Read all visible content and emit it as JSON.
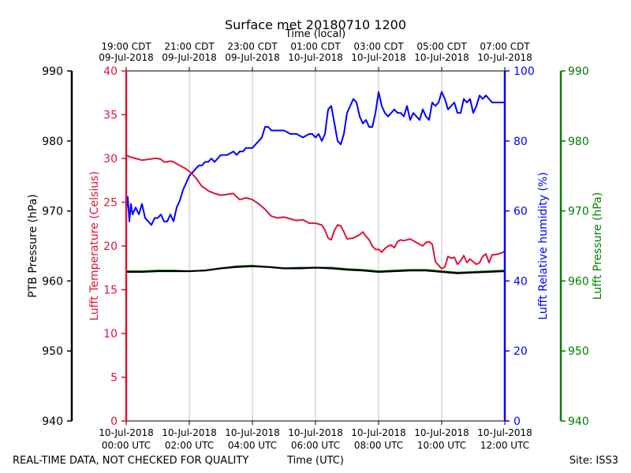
{
  "chart_data": {
    "type": "line",
    "title": "Surface met 20180710 1200",
    "top_axis_label": "Time (local)",
    "xlabel": "Time (UTC)",
    "footer_left": "REAL-TIME DATA, NOT CHECKED FOR QUALITY",
    "footer_right": "Site: ISS3",
    "x_unit": "hours after 10-Jul-2018 00:00 UTC",
    "xlim": [
      0,
      12
    ],
    "x_ticks_utc": [
      {
        "x": 0,
        "line1": "10-Jul-2018",
        "line2": "00:00 UTC"
      },
      {
        "x": 2,
        "line1": "10-Jul-2018",
        "line2": "02:00 UTC"
      },
      {
        "x": 4,
        "line1": "10-Jul-2018",
        "line2": "04:00 UTC"
      },
      {
        "x": 6,
        "line1": "10-Jul-2018",
        "line2": "06:00 UTC"
      },
      {
        "x": 8,
        "line1": "10-Jul-2018",
        "line2": "08:00 UTC"
      },
      {
        "x": 10,
        "line1": "10-Jul-2018",
        "line2": "10:00 UTC"
      },
      {
        "x": 12,
        "line1": "10-Jul-2018",
        "line2": "12:00 UTC"
      }
    ],
    "x_ticks_local": [
      {
        "x": 0,
        "line1": "19:00 CDT",
        "line2": "09-Jul-2018"
      },
      {
        "x": 2,
        "line1": "21:00 CDT",
        "line2": "09-Jul-2018"
      },
      {
        "x": 4,
        "line1": "23:00 CDT",
        "line2": "09-Jul-2018"
      },
      {
        "x": 6,
        "line1": "01:00 CDT",
        "line2": "10-Jul-2018"
      },
      {
        "x": 8,
        "line1": "03:00 CDT",
        "line2": "10-Jul-2018"
      },
      {
        "x": 10,
        "line1": "05:00 CDT",
        "line2": "10-Jul-2018"
      },
      {
        "x": 12,
        "line1": "07:00 CDT",
        "line2": "10-Jul-2018"
      }
    ],
    "axes": {
      "ptb": {
        "label": "PTB Pressure (hPa)",
        "color": "#000000",
        "ylim": [
          940,
          990
        ],
        "ticks": [
          940,
          950,
          960,
          970,
          980,
          990
        ]
      },
      "temp": {
        "label": "Lufft Temperature (Celsius)",
        "color": "#dc143c",
        "ylim": [
          0,
          40
        ],
        "ticks": [
          0,
          5,
          10,
          15,
          20,
          25,
          30,
          35,
          40
        ]
      },
      "rh": {
        "label": "Lufft Relative humidity (%)",
        "color": "#0000ff",
        "ylim": [
          0,
          100
        ],
        "ticks": [
          0,
          20,
          40,
          60,
          80,
          100
        ]
      },
      "lufft_p": {
        "label": "Lufft Pressure (hPa)",
        "color": "#008000",
        "ylim": [
          940,
          990
        ],
        "ticks": [
          940,
          950,
          960,
          970,
          980,
          990
        ]
      }
    },
    "grid": "vertical",
    "series": [
      {
        "name": "Lufft Relative humidity",
        "axis": "rh",
        "color": "#0000ff",
        "x": [
          0,
          0.05,
          0.1,
          0.15,
          0.2,
          0.3,
          0.4,
          0.5,
          0.6,
          0.7,
          0.8,
          0.9,
          1.0,
          1.1,
          1.2,
          1.3,
          1.4,
          1.5,
          1.6,
          1.7,
          1.8,
          1.9,
          2.0,
          2.1,
          2.2,
          2.3,
          2.4,
          2.5,
          2.6,
          2.7,
          2.8,
          3.0,
          3.2,
          3.4,
          3.5,
          3.6,
          3.7,
          3.8,
          3.9,
          4.0,
          4.1,
          4.2,
          4.3,
          4.4,
          4.5,
          4.6,
          4.8,
          5.0,
          5.2,
          5.4,
          5.6,
          5.8,
          5.9,
          6.0,
          6.1,
          6.2,
          6.3,
          6.4,
          6.5,
          6.6,
          6.7,
          6.8,
          6.9,
          7.0,
          7.1,
          7.2,
          7.3,
          7.4,
          7.5,
          7.6,
          7.7,
          7.8,
          7.9,
          8.0,
          8.1,
          8.2,
          8.3,
          8.4,
          8.5,
          8.6,
          8.7,
          8.8,
          8.9,
          9.0,
          9.1,
          9.2,
          9.3,
          9.4,
          9.5,
          9.6,
          9.7,
          9.8,
          9.9,
          10.0,
          10.1,
          10.2,
          10.3,
          10.4,
          10.5,
          10.6,
          10.7,
          10.8,
          10.9,
          11.0,
          11.1,
          11.2,
          11.3,
          11.4,
          11.5,
          11.6,
          11.7,
          11.8,
          11.9,
          12.0
        ],
        "values": [
          60,
          64,
          57,
          62,
          59,
          61,
          59,
          62,
          58,
          57,
          56,
          58,
          58,
          59,
          57,
          57,
          59,
          57,
          61,
          63,
          66,
          68,
          70,
          71,
          72,
          73,
          73,
          74,
          74,
          75,
          74,
          76,
          76,
          77,
          76,
          77,
          77,
          78,
          78,
          78,
          79,
          80,
          81,
          84,
          84,
          83,
          83,
          83,
          82,
          82,
          81,
          82,
          82,
          81,
          82,
          80,
          82,
          89,
          90,
          85,
          80,
          79,
          82,
          88,
          90,
          92,
          91,
          87,
          85,
          86,
          84,
          84,
          88,
          94,
          90,
          88,
          87,
          88,
          89,
          88,
          88,
          87,
          90,
          86,
          88,
          87,
          86,
          89,
          87,
          86,
          91,
          90,
          91,
          94,
          92,
          89,
          90,
          91,
          88,
          88,
          92,
          91,
          92,
          88,
          90,
          93,
          92,
          93,
          92,
          91,
          91,
          91,
          91,
          91
        ]
      },
      {
        "name": "Lufft Temperature",
        "axis": "temp",
        "color": "#dc143c",
        "x": [
          0,
          0.1,
          0.3,
          0.5,
          0.7,
          0.9,
          1.0,
          1.1,
          1.2,
          1.3,
          1.4,
          1.5,
          1.6,
          1.7,
          1.8,
          1.9,
          2.0,
          2.1,
          2.2,
          2.3,
          2.4,
          2.5,
          2.6,
          2.8,
          3.0,
          3.2,
          3.4,
          3.5,
          3.6,
          3.8,
          4.0,
          4.2,
          4.4,
          4.6,
          4.8,
          5.0,
          5.2,
          5.4,
          5.6,
          5.8,
          6.0,
          6.2,
          6.3,
          6.4,
          6.5,
          6.6,
          6.7,
          6.8,
          6.9,
          7.0,
          7.2,
          7.4,
          7.5,
          7.6,
          7.7,
          7.8,
          7.9,
          8.0,
          8.1,
          8.2,
          8.3,
          8.4,
          8.5,
          8.6,
          8.7,
          8.8,
          9.0,
          9.2,
          9.4,
          9.5,
          9.6,
          9.7,
          9.8,
          9.9,
          10.0,
          10.1,
          10.2,
          10.3,
          10.4,
          10.5,
          10.6,
          10.7,
          10.8,
          10.9,
          11.0,
          11.1,
          11.2,
          11.3,
          11.4,
          11.5,
          11.6,
          11.7,
          11.8,
          11.9,
          12.0
        ],
        "values": [
          30.4,
          30.2,
          30.0,
          29.8,
          29.9,
          30.0,
          30.0,
          29.9,
          29.6,
          29.6,
          29.7,
          29.6,
          29.4,
          29.2,
          29.0,
          28.8,
          28.5,
          28.2,
          27.8,
          27.3,
          26.8,
          26.6,
          26.3,
          26.0,
          25.8,
          25.9,
          26.0,
          25.6,
          25.3,
          25.5,
          25.3,
          24.8,
          24.2,
          23.4,
          23.2,
          23.3,
          23.1,
          22.9,
          23.0,
          22.6,
          22.6,
          22.4,
          21.8,
          20.9,
          20.7,
          21.8,
          22.4,
          22.3,
          21.6,
          20.8,
          20.9,
          21.3,
          21.6,
          21.1,
          20.7,
          20.0,
          19.6,
          19.6,
          19.3,
          19.7,
          20.0,
          20.1,
          19.8,
          20.5,
          20.7,
          20.6,
          20.8,
          20.4,
          20.0,
          20.4,
          20.5,
          20.2,
          18.2,
          17.8,
          17.4,
          17.6,
          18.8,
          18.6,
          18.7,
          17.9,
          18.3,
          18.9,
          18.1,
          18.5,
          18.2,
          17.9,
          18.1,
          18.8,
          19.1,
          18.1,
          19.0,
          19.0,
          19.1,
          19.2,
          19.4
        ]
      },
      {
        "name": "Lufft Pressure",
        "axis": "lufft_p",
        "color": "#008000",
        "x": [
          0,
          0.5,
          1.0,
          1.5,
          2.0,
          2.5,
          3.0,
          3.5,
          4.0,
          4.5,
          5.0,
          5.5,
          6.0,
          6.5,
          7.0,
          7.5,
          8.0,
          8.5,
          9.0,
          9.5,
          10.0,
          10.5,
          11.0,
          11.5,
          12.0
        ],
        "values": [
          961.4,
          961.4,
          961.5,
          961.5,
          961.4,
          961.5,
          961.8,
          962.1,
          962.2,
          962.0,
          961.8,
          961.9,
          961.9,
          961.9,
          961.7,
          961.6,
          961.4,
          961.5,
          961.6,
          961.6,
          961.4,
          961.2,
          961.3,
          961.4,
          961.5
        ]
      },
      {
        "name": "PTB Pressure",
        "axis": "ptb",
        "color": "#000000",
        "x": [
          0,
          0.5,
          1.0,
          1.5,
          2.0,
          2.5,
          3.0,
          3.5,
          4.0,
          4.5,
          5.0,
          5.5,
          6.0,
          6.5,
          7.0,
          7.5,
          8.0,
          8.5,
          9.0,
          9.5,
          10.0,
          10.5,
          11.0,
          11.5,
          12.0
        ],
        "values": [
          961.3,
          961.3,
          961.4,
          961.4,
          961.4,
          961.5,
          961.8,
          962.0,
          962.1,
          962.0,
          961.8,
          961.8,
          961.9,
          961.8,
          961.6,
          961.5,
          961.3,
          961.4,
          961.5,
          961.5,
          961.3,
          961.1,
          961.2,
          961.3,
          961.4
        ]
      }
    ]
  }
}
